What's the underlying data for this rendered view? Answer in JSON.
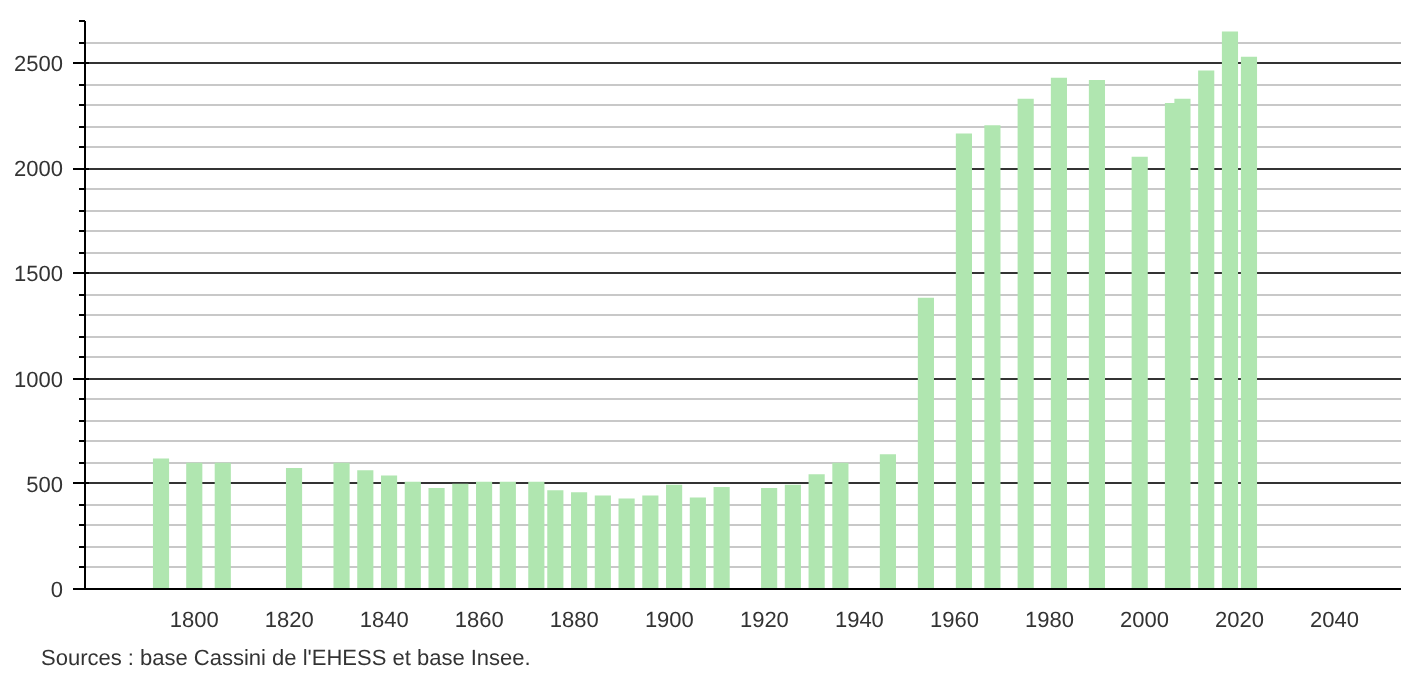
{
  "chart_data": {
    "type": "bar",
    "x": [
      1793,
      1800,
      1806,
      1821,
      1831,
      1836,
      1841,
      1846,
      1851,
      1856,
      1861,
      1866,
      1872,
      1876,
      1881,
      1886,
      1891,
      1896,
      1901,
      1906,
      1911,
      1921,
      1926,
      1931,
      1936,
      1946,
      1954,
      1962,
      1968,
      1975,
      1982,
      1990,
      1999,
      2006,
      2008,
      2013,
      2018,
      2022
    ],
    "values": [
      620,
      600,
      600,
      575,
      600,
      565,
      540,
      510,
      480,
      500,
      510,
      510,
      510,
      470,
      460,
      445,
      430,
      445,
      495,
      435,
      485,
      480,
      495,
      545,
      600,
      640,
      1385,
      2165,
      2205,
      2330,
      2430,
      2420,
      2055,
      2310,
      2330,
      2465,
      2650,
      2530
    ],
    "color": "#b0e6b0",
    "xlim": [
      1777,
      2054
    ],
    "xticks": [
      1800,
      1820,
      1840,
      1860,
      1880,
      1900,
      1920,
      1940,
      1960,
      1980,
      2000,
      2020,
      2040
    ],
    "ylim": [
      0,
      2700
    ],
    "yticks": [
      0,
      500,
      1000,
      1500,
      2000,
      2500
    ],
    "grid": "y",
    "annotations": [
      "Sources : base Cassini de l'EHESS et base Insee."
    ]
  }
}
